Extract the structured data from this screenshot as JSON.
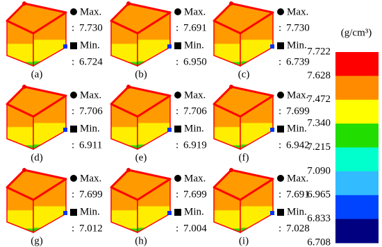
{
  "panels": [
    {
      "label": "(a)",
      "max": "7.730",
      "min": "6.724"
    },
    {
      "label": "(b)",
      "max": "7.691",
      "min": "6.950"
    },
    {
      "label": "(c)",
      "max": "7.730",
      "min": "6.739"
    },
    {
      "label": "(d)",
      "max": "7.706",
      "min": "6.911"
    },
    {
      "label": "(e)",
      "max": "7.706",
      "min": "6.919"
    },
    {
      "label": "(f)",
      "max": "7.699",
      "min": "6.942"
    },
    {
      "label": "(g)",
      "max": "7.699",
      "min": "7.012"
    },
    {
      "label": "(h)",
      "max": "7.699",
      "min": "7.004"
    },
    {
      "label": "(i)",
      "max": "7.691",
      "min": "7.028"
    }
  ],
  "max_label": "Max.",
  "min_label": "Min.",
  "separator": ":",
  "colorbar": {
    "unit": "(g/cm³)",
    "ticks": [
      "7.722",
      "7.628",
      "7.472",
      "7.340",
      "7.215",
      "7.090",
      "6.965",
      "6.833",
      "6.708"
    ],
    "colors": [
      "#ff0000",
      "#ff8c00",
      "#ffff00",
      "#22dd00",
      "#00ffcc",
      "#33bbff",
      "#0044ff",
      "#000080"
    ]
  }
}
